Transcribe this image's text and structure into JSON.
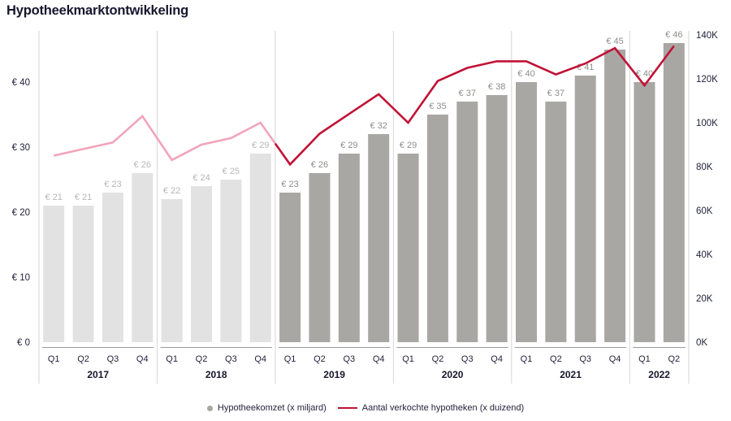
{
  "page": {
    "title": "Hypotheekmarktontwikkeling"
  },
  "legend": [
    {
      "swatch": "gray-dot",
      "label": "Hypotheekomzet (x miljard)"
    },
    {
      "swatch": "red-line",
      "label": "Aantal verkochte hypotheken (x duizend)"
    }
  ],
  "axes": {
    "left_ticks": [
      "€ 0",
      "€ 10",
      "€ 20",
      "€ 30",
      "€ 40"
    ],
    "right_ticks": [
      "0K",
      "20K",
      "40K",
      "60K",
      "80K",
      "100K",
      "120K",
      "140K"
    ]
  },
  "colors": {
    "title_text": "#16162e",
    "axis_text": "#23233c",
    "bar_past": "#e3e2e2",
    "bar_recent": "#a9a7a4",
    "bar_label_past": "#b8b7b6",
    "bar_label_recent": "#8e8d8b",
    "line_past": "#f1a4ba",
    "line_recent": "#c11236",
    "separator": "#d6d6d8",
    "baseline": "#9a9aa2"
  },
  "chart_data": {
    "type": "bar",
    "subtype": "combo-bar-line",
    "title": "Hypotheekmarktontwikkeling",
    "x_groups": [
      {
        "year": "2017",
        "quarters": [
          "Q1",
          "Q2",
          "Q3",
          "Q4"
        ]
      },
      {
        "year": "2018",
        "quarters": [
          "Q1",
          "Q2",
          "Q3",
          "Q4"
        ]
      },
      {
        "year": "2019",
        "quarters": [
          "Q1",
          "Q2",
          "Q3",
          "Q4"
        ]
      },
      {
        "year": "2020",
        "quarters": [
          "Q1",
          "Q2",
          "Q3",
          "Q4"
        ]
      },
      {
        "year": "2021",
        "quarters": [
          "Q1",
          "Q2",
          "Q3",
          "Q4"
        ]
      },
      {
        "year": "2022",
        "quarters": [
          "Q1",
          "Q2"
        ]
      }
    ],
    "series": [
      {
        "name": "Hypotheekomzet (x miljard)",
        "type": "bar",
        "axis": "left",
        "unit": "€ miljard",
        "values": [
          21,
          21,
          23,
          26,
          22,
          24,
          25,
          29,
          23,
          26,
          29,
          32,
          29,
          35,
          37,
          38,
          40,
          37,
          41,
          45,
          40,
          46
        ],
        "bar_labels": [
          "€ 21",
          "€ 21",
          "€ 23",
          "€ 26",
          "€ 22",
          "€ 24",
          "€ 25",
          "€ 29",
          "€ 23",
          "€ 26",
          "€ 29",
          "€ 32",
          "€ 29",
          "€ 35",
          "€ 37",
          "€ 38",
          "€ 40",
          "€ 37",
          "€ 41",
          "€ 45",
          "€ 40",
          "€ 46"
        ]
      },
      {
        "name": "Aantal verkochte hypotheken (x duizend)",
        "type": "line",
        "axis": "right",
        "unit": "x duizend",
        "values": [
          85,
          88,
          91,
          103,
          83,
          90,
          93,
          100,
          81,
          95,
          104,
          113,
          100,
          119,
          125,
          128,
          128,
          122,
          127,
          134,
          117,
          135
        ]
      }
    ],
    "left_axis": {
      "tick_values": [
        0,
        10,
        20,
        30,
        40
      ],
      "range": [
        0,
        40
      ]
    },
    "right_axis": {
      "tick_values": [
        0,
        20,
        40,
        60,
        80,
        100,
        120,
        140
      ],
      "range": [
        0,
        140
      ]
    },
    "style_note": "2017-2018 shown muted (light grey bars, pink line); 2019 onward emphasized (dark grey bars, red line)",
    "grid": "vertical year separators only",
    "legend_position": "bottom-center",
    "muted_period_points": 8
  }
}
